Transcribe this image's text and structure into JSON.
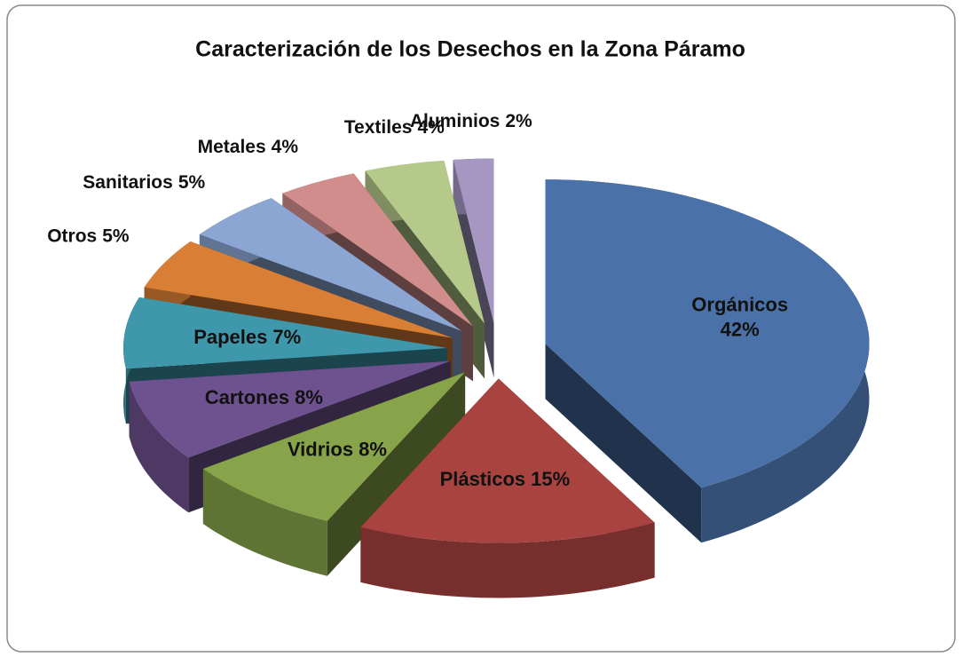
{
  "chart_data": {
    "type": "pie",
    "title": "Caracterización de los Desechos en la Zona Páramo",
    "categories": [
      "Orgánicos",
      "Plásticos",
      "Vidrios",
      "Cartones",
      "Papeles",
      "Otros",
      "Sanitarios",
      "Metales",
      "Textiles",
      "Aluminios"
    ],
    "values": [
      42,
      15,
      8,
      8,
      7,
      5,
      5,
      4,
      4,
      2
    ],
    "value_labels": [
      "42%",
      "15%",
      "8%",
      "8%",
      "7%",
      "5%",
      "5%",
      "4%",
      "4%",
      "2%"
    ],
    "colors": [
      "#4a72a8",
      "#a84340",
      "#88a44a",
      "#6e528f",
      "#3f97ac",
      "#d97f35",
      "#8ca6d4",
      "#d18d8c",
      "#b5ca8a",
      "#a596c2"
    ]
  }
}
